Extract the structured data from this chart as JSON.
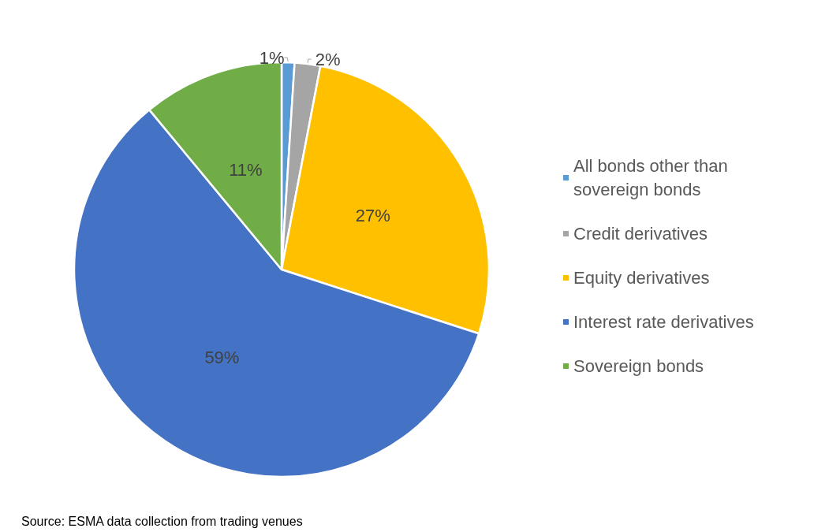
{
  "chart_data": {
    "type": "pie",
    "categories": [
      "All bonds other than sovereign bonds",
      "Credit derivatives",
      "Equity derivatives",
      "Interest rate derivatives",
      "Sovereign bonds"
    ],
    "values": [
      1,
      2,
      27,
      59,
      11
    ],
    "colors": [
      "#5b9bd5",
      "#a5a5a5",
      "#ffc000",
      "#4472c4",
      "#70ad47"
    ],
    "value_labels": [
      "1%",
      "2%",
      "27%",
      "59%",
      "11%"
    ],
    "legend": "right",
    "annotations": [
      "Source: ESMA data collection from trading venues"
    ]
  }
}
